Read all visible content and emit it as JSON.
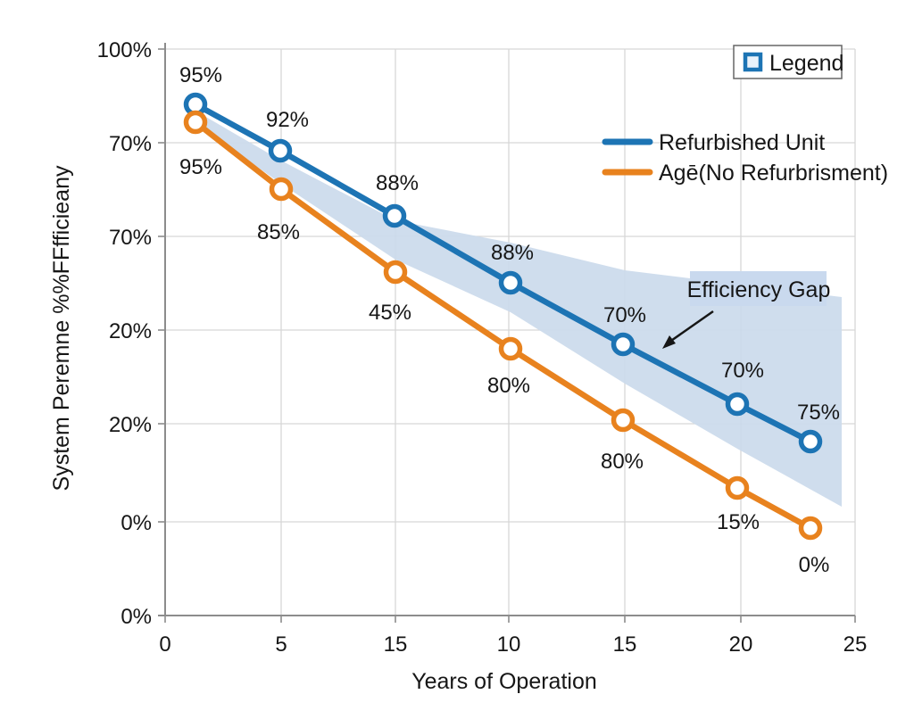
{
  "chart_data": {
    "type": "line",
    "title": "",
    "xlabel": "Years of Operation",
    "ylabel": "System Peremne %%FFfficieany",
    "x_tick_labels": [
      "0",
      "5",
      "15",
      "10",
      "15",
      "20",
      "25"
    ],
    "y_tick_labels": [
      "100%",
      "70%",
      "70%",
      "20%",
      "20%",
      "0%",
      "0%"
    ],
    "grid": true,
    "legend": {
      "title": "Legend",
      "position": "top-right"
    },
    "annotation": {
      "text": "Efficiency Gap"
    },
    "series": [
      {
        "name": "Refurbished Unit",
        "color": "#1d74b4",
        "values": [
          95,
          92,
          88,
          88,
          70,
          70,
          75
        ],
        "point_labels": [
          "95%",
          "92%",
          "88%",
          "88%",
          "70%",
          "70%",
          "75%"
        ]
      },
      {
        "name": "Agē(No Refurbrisment)",
        "color": "#e8821e",
        "values": [
          95,
          85,
          45,
          80,
          80,
          15,
          0
        ],
        "point_labels": [
          "95%",
          "85%",
          "45%",
          "80%",
          "80%",
          "15%",
          "0%"
        ]
      }
    ],
    "band": {
      "meaning": "Efficiency Gap shaded area between the two series",
      "color": "#cbdaec"
    }
  },
  "colors": {
    "series_blue": "#1d74b4",
    "series_orange": "#e8821e",
    "band_fill": "#cbdaec",
    "annotation_bg": "#c9d9ee",
    "gridline": "#d7d7d7",
    "axis": "#8c8c8c",
    "text": "#161616",
    "marker_fill": "#ffffff",
    "legend_border": "#666666"
  }
}
